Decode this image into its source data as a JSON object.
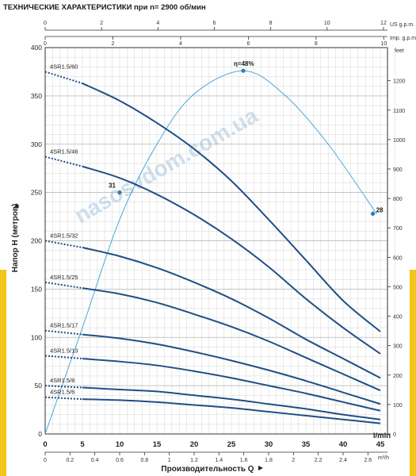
{
  "title": "ТЕХНИЧЕСКИЕ ХАРАКТЕРИСТИКИ при n= 2900 об/мин",
  "watermark": "nasosvdom.com.ua",
  "chart_data": {
    "type": "line",
    "xlabel": "Производительность Q",
    "xunit": "l/min",
    "ylabel": "Напор H (метров)",
    "xlim": [
      0,
      47
    ],
    "ylim": [
      0,
      400
    ],
    "x_ticks": [
      0,
      5,
      10,
      15,
      20,
      25,
      30,
      35,
      40,
      45
    ],
    "y_ticks": [
      0,
      50,
      100,
      150,
      200,
      250,
      300,
      350,
      400
    ],
    "top_axis_1": {
      "label": "US g.p.m.",
      "ticks": [
        "0",
        "2",
        "4",
        "6",
        "8",
        "10",
        "12"
      ]
    },
    "top_axis_2": {
      "label": "Imp. g.p.m.",
      "ticks": [
        "0",
        "2",
        "4",
        "6",
        "8",
        "10"
      ]
    },
    "right_axis": {
      "label": "feet",
      "ticks": [
        "0",
        "100",
        "200",
        "300",
        "400",
        "500",
        "600",
        "700",
        "800",
        "900",
        "1000",
        "1100",
        "1200"
      ]
    },
    "bottom_axis_2": {
      "label": "m³/h",
      "ticks": [
        "0",
        "0.2",
        "0.4",
        "0.6",
        "0.8",
        "1",
        "1.2",
        "1.4",
        "1.6",
        "1.8",
        "2",
        "2.2",
        "2.4",
        "2.6"
      ]
    },
    "series": [
      {
        "name": "4SR1.5/60",
        "shutoff": 375,
        "points": [
          [
            5,
            363
          ],
          [
            10,
            345
          ],
          [
            15,
            322
          ],
          [
            20,
            295
          ],
          [
            25,
            262
          ],
          [
            30,
            222
          ],
          [
            35,
            180
          ],
          [
            40,
            138
          ],
          [
            45,
            106
          ]
        ]
      },
      {
        "name": "4SR1.5/46",
        "shutoff": 287,
        "points": [
          [
            5,
            277
          ],
          [
            10,
            265
          ],
          [
            15,
            248
          ],
          [
            20,
            227
          ],
          [
            25,
            202
          ],
          [
            30,
            173
          ],
          [
            35,
            140
          ],
          [
            40,
            110
          ],
          [
            45,
            83
          ]
        ]
      },
      {
        "name": "4SR1.5/32",
        "shutoff": 200,
        "points": [
          [
            5,
            193
          ],
          [
            10,
            184
          ],
          [
            15,
            172
          ],
          [
            20,
            157
          ],
          [
            25,
            140
          ],
          [
            30,
            120
          ],
          [
            35,
            98
          ],
          [
            40,
            78
          ],
          [
            45,
            58
          ]
        ]
      },
      {
        "name": "4SR1.5/25",
        "shutoff": 157,
        "points": [
          [
            5,
            151
          ],
          [
            10,
            145
          ],
          [
            15,
            136
          ],
          [
            20,
            124
          ],
          [
            25,
            111
          ],
          [
            30,
            96
          ],
          [
            35,
            79
          ],
          [
            40,
            62
          ],
          [
            45,
            45
          ]
        ]
      },
      {
        "name": "4SR1.5/17",
        "shutoff": 107,
        "points": [
          [
            5,
            103
          ],
          [
            10,
            99
          ],
          [
            15,
            93
          ],
          [
            20,
            85
          ],
          [
            25,
            76
          ],
          [
            30,
            66
          ],
          [
            35,
            55
          ],
          [
            40,
            43
          ],
          [
            45,
            31
          ]
        ]
      },
      {
        "name": "4SR1.5/13",
        "shutoff": 81,
        "points": [
          [
            5,
            78
          ],
          [
            10,
            75
          ],
          [
            15,
            71
          ],
          [
            20,
            65
          ],
          [
            25,
            58
          ],
          [
            30,
            50
          ],
          [
            35,
            42
          ],
          [
            40,
            33
          ],
          [
            45,
            24
          ]
        ]
      },
      {
        "name": "4SR1.5/8",
        "shutoff": 50,
        "points": [
          [
            5,
            48
          ],
          [
            10,
            46
          ],
          [
            15,
            44
          ],
          [
            20,
            40
          ],
          [
            25,
            36
          ],
          [
            30,
            31
          ],
          [
            35,
            26
          ],
          [
            40,
            20
          ],
          [
            45,
            15
          ]
        ]
      },
      {
        "name": "4SR1.5/6",
        "shutoff": 38,
        "points": [
          [
            5,
            36
          ],
          [
            10,
            35
          ],
          [
            15,
            33
          ],
          [
            20,
            30
          ],
          [
            25,
            27
          ],
          [
            30,
            23
          ],
          [
            35,
            19
          ],
          [
            40,
            15
          ],
          [
            45,
            11
          ]
        ]
      }
    ],
    "efficiency": {
      "points": [
        [
          0,
          0
        ],
        [
          5,
          110
        ],
        [
          10,
          222
        ],
        [
          15,
          300
        ],
        [
          20,
          352
        ],
        [
          26.6,
          376
        ],
        [
          32,
          352
        ],
        [
          38,
          300
        ],
        [
          44.5,
          228
        ]
      ],
      "markers": [
        {
          "x": 10,
          "y": 250,
          "label": "31"
        },
        {
          "x": 26.6,
          "y": 376,
          "label": "η=48%"
        },
        {
          "x": 44,
          "y": 228,
          "label": "28"
        }
      ]
    },
    "grid": true
  }
}
